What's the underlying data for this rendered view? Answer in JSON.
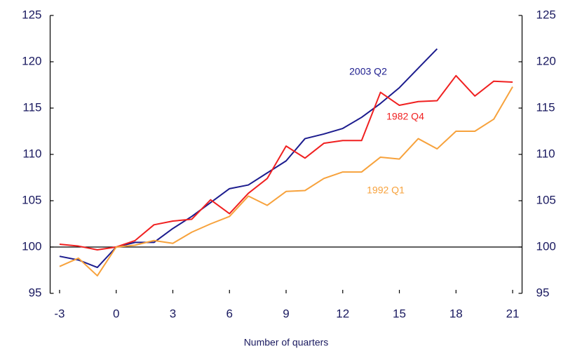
{
  "chart_data": {
    "type": "line",
    "x_label": "Number of quarters",
    "x": [
      -3,
      -2,
      -1,
      0,
      1,
      2,
      3,
      4,
      5,
      6,
      7,
      8,
      9,
      10,
      11,
      12,
      13,
      14,
      15,
      16,
      17,
      18,
      19,
      20,
      21
    ],
    "series": [
      {
        "name": "2003 Q2",
        "color": "#1c1c8e",
        "values": [
          99.0,
          98.6,
          97.8,
          100,
          100.5,
          100.5,
          102,
          103.3,
          104.8,
          106.3,
          106.7,
          108,
          109.3,
          111.7,
          112.2,
          112.8,
          114,
          115.5,
          117.2,
          119.3,
          121.4,
          null,
          null,
          null,
          null
        ]
      },
      {
        "name": "1982 Q4",
        "color": "#f02020",
        "values": [
          100.3,
          100.1,
          99.7,
          100,
          100.7,
          102.4,
          102.8,
          103,
          105.1,
          103.6,
          105.8,
          107.4,
          110.9,
          109.6,
          111.2,
          111.5,
          111.5,
          116.7,
          115.3,
          115.7,
          115.8,
          118.5,
          116.3,
          117.9,
          117.8
        ]
      },
      {
        "name": "1992 Q1",
        "color": "#f7a23c",
        "values": [
          97.9,
          98.8,
          96.9,
          100,
          100.2,
          100.7,
          100.4,
          101.6,
          102.5,
          103.3,
          105.5,
          104.5,
          106,
          106.1,
          107.4,
          108.1,
          108.1,
          109.7,
          109.5,
          111.7,
          110.6,
          112.5,
          112.5,
          113.8,
          117.3
        ]
      }
    ],
    "xlim": [
      -3.5,
      21.5
    ],
    "xticks": [
      -3,
      0,
      3,
      6,
      9,
      12,
      15,
      18,
      21
    ],
    "ylim": [
      95,
      125
    ],
    "yticks": [
      95,
      100,
      105,
      110,
      115,
      120,
      125
    ],
    "baseline": 100
  }
}
